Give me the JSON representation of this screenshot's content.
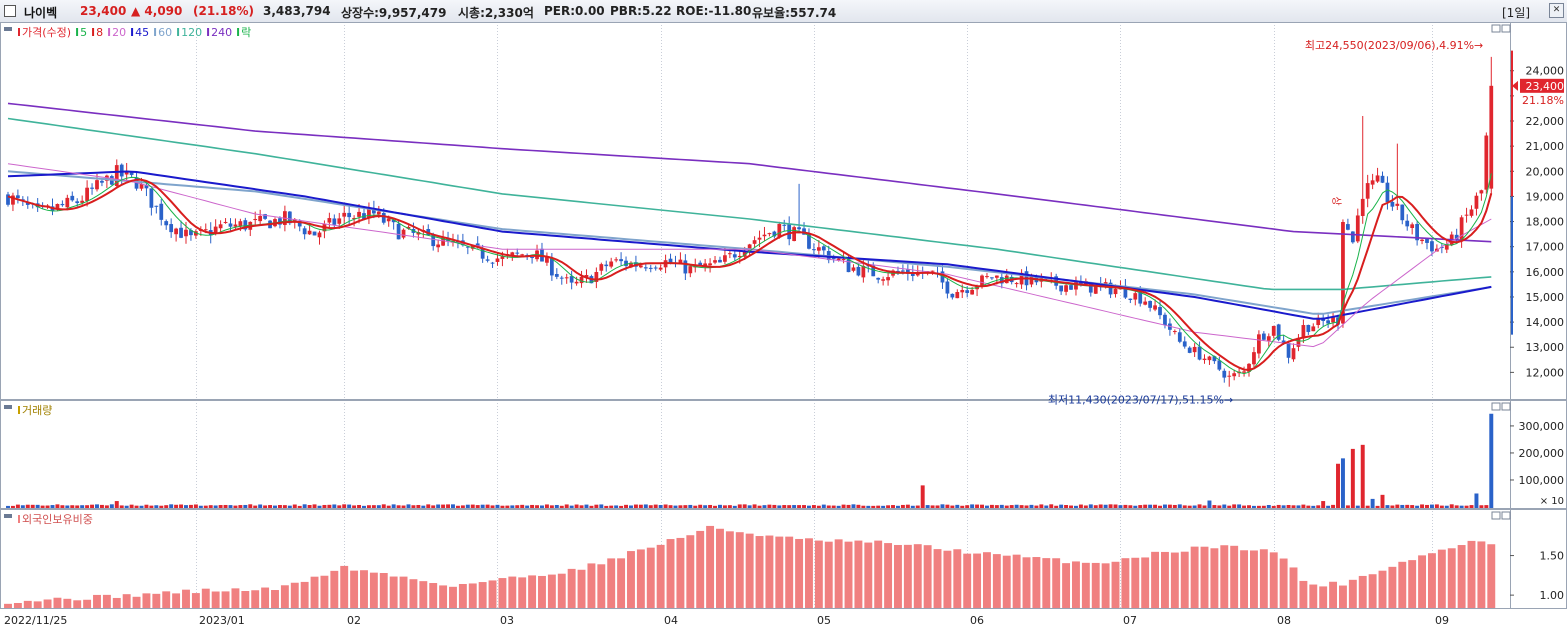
{
  "header": {
    "name": "나이벡",
    "price": "23,400",
    "change": "▲ 4,090",
    "change_pct": "(21.18%)",
    "volume": "3,483,794",
    "listed": "상장수:9,957,479",
    "mktcap": "시총:2,330억",
    "per": "PER:0.00",
    "pbr": "PBR:5.22",
    "roe": "ROE:-11.80",
    "reserve": "유보율:557.74",
    "period": "[1일]",
    "close_glyph": "✕"
  },
  "colors": {
    "up": "#e0262e",
    "down": "#2a62c9",
    "ma5": "#19b34a",
    "ma8": "#d81e1e",
    "ma20": "#cc66cc",
    "ma45": "#1a1acc",
    "ma60": "#7fa4cc",
    "ma120": "#3fb39a",
    "ma240": "#7a2fc0",
    "foreign": "#f08080"
  },
  "chart_data": [
    {
      "type": "candlestick",
      "title": "",
      "legend": [
        {
          "label": "가격(수정)",
          "color": "#e0262e"
        },
        {
          "label": "5",
          "color": "#19b34a"
        },
        {
          "label": "8",
          "color": "#d81e1e"
        },
        {
          "label": "20",
          "color": "#cc66cc"
        },
        {
          "label": "45",
          "color": "#1a1acc"
        },
        {
          "label": "60",
          "color": "#7fa4cc"
        },
        {
          "label": "120",
          "color": "#3fb39a"
        },
        {
          "label": "240",
          "color": "#7a2fc0"
        },
        {
          "label": "락",
          "color": "#19b34a"
        }
      ],
      "x_labels": [
        "2022/11/25",
        "2023/01",
        "02",
        "03",
        "04",
        "05",
        "06",
        "07",
        "08",
        "09"
      ],
      "y_ticks": [
        12000,
        13000,
        14000,
        15000,
        16000,
        17000,
        18000,
        19000,
        20000,
        21000,
        22000,
        23000,
        24000
      ],
      "y_tick_labels": [
        "12,000",
        "13,000",
        "14,000",
        "15,000",
        "16,000",
        "17,000",
        "18,000",
        "19,000",
        "20,000",
        "21,000",
        "22,000",
        "",
        "24,000"
      ],
      "ylim": [
        11100,
        25700
      ],
      "close_path": [
        [
          0,
          19000
        ],
        [
          6,
          18300
        ],
        [
          14,
          18800
        ],
        [
          22,
          19900
        ],
        [
          26,
          19600
        ],
        [
          32,
          18000
        ],
        [
          37,
          17300
        ],
        [
          43,
          17800
        ],
        [
          50,
          17900
        ],
        [
          56,
          18100
        ],
        [
          62,
          17500
        ],
        [
          68,
          18200
        ],
        [
          74,
          18300
        ],
        [
          79,
          17600
        ],
        [
          86,
          17300
        ],
        [
          94,
          16800
        ],
        [
          100,
          16500
        ],
        [
          106,
          16800
        ],
        [
          109,
          16300
        ],
        [
          114,
          15400
        ],
        [
          118,
          15800
        ],
        [
          122,
          16400
        ],
        [
          127,
          16300
        ],
        [
          133,
          16400
        ],
        [
          138,
          16100
        ],
        [
          144,
          16300
        ],
        [
          150,
          17200
        ],
        [
          156,
          17800
        ],
        [
          160,
          17400
        ],
        [
          164,
          16900
        ],
        [
          170,
          16200
        ],
        [
          176,
          15900
        ],
        [
          182,
          16000
        ],
        [
          187,
          15900
        ],
        [
          191,
          15200
        ],
        [
          194,
          15400
        ],
        [
          199,
          15800
        ],
        [
          205,
          15700
        ],
        [
          212,
          15500
        ],
        [
          219,
          15400
        ],
        [
          225,
          15300
        ],
        [
          230,
          14900
        ],
        [
          234,
          14000
        ],
        [
          237,
          13200
        ],
        [
          241,
          12700
        ],
        [
          244,
          12300
        ],
        [
          247,
          11800
        ],
        [
          250,
          12000
        ],
        [
          253,
          13400
        ],
        [
          256,
          13800
        ],
        [
          259,
          12700
        ],
        [
          262,
          13800
        ],
        [
          266,
          14000
        ],
        [
          269,
          14100
        ],
        [
          270,
          18200
        ],
        [
          272,
          17200
        ],
        [
          274,
          19200
        ],
        [
          277,
          19500
        ],
        [
          281,
          18400
        ],
        [
          285,
          17400
        ],
        [
          289,
          16900
        ],
        [
          292,
          17200
        ],
        [
          295,
          18200
        ],
        [
          298,
          19200
        ],
        [
          300,
          23400
        ]
      ],
      "candles_count": 301,
      "last_close": "23,400",
      "last_pct": "21.18%",
      "annotations": [
        {
          "text": "최고24,550(2023/09/06),4.91%→",
          "value": 24550
        },
        {
          "text": "최저11,430(2023/07/17),51.15%→",
          "value": 11430
        },
        {
          "text": "상",
          "note": "upper-limit marker"
        }
      ],
      "moving_averages": [
        {
          "name": "240",
          "points": [
            [
              0,
              22700
            ],
            [
              50,
              21600
            ],
            [
              100,
              20900
            ],
            [
              150,
              20300
            ],
            [
              200,
              19100
            ],
            [
              260,
              17600
            ],
            [
              300,
              17200
            ]
          ]
        },
        {
          "name": "120",
          "points": [
            [
              0,
              22100
            ],
            [
              50,
              20700
            ],
            [
              100,
              19100
            ],
            [
              150,
              18100
            ],
            [
              200,
              16900
            ],
            [
              255,
              15300
            ],
            [
              270,
              15300
            ],
            [
              300,
              15800
            ]
          ]
        },
        {
          "name": "60",
          "points": [
            [
              0,
              20000
            ],
            [
              50,
              19200
            ],
            [
              100,
              17700
            ],
            [
              150,
              16900
            ],
            [
              190,
              16200
            ],
            [
              240,
              15100
            ],
            [
              265,
              14300
            ],
            [
              300,
              15400
            ]
          ]
        },
        {
          "name": "45",
          "points": [
            [
              0,
              19800
            ],
            [
              25,
              20000
            ],
            [
              60,
              19000
            ],
            [
              100,
              17600
            ],
            [
              150,
              16800
            ],
            [
              190,
              16300
            ],
            [
              240,
              15000
            ],
            [
              265,
              14100
            ],
            [
              300,
              15400
            ]
          ]
        },
        {
          "name": "20",
          "points": [
            [
              0,
              20300
            ],
            [
              25,
              19600
            ],
            [
              50,
              18300
            ],
            [
              100,
              16900
            ],
            [
              150,
              16900
            ],
            [
              190,
              15900
            ],
            [
              240,
              13600
            ],
            [
              265,
              13000
            ],
            [
              275,
              14800
            ],
            [
              290,
              17000
            ],
            [
              300,
              18100
            ]
          ]
        }
      ]
    },
    {
      "type": "bar",
      "title": "거래량",
      "legend": [
        {
          "label": "거래량",
          "color": "#c8a000"
        }
      ],
      "y_ticks": [
        100000,
        200000,
        300000
      ],
      "y_tick_labels": [
        "100,000",
        "200,000",
        "300,000"
      ],
      "unit_label": "× 10",
      "ylim": [
        0,
        370000
      ],
      "spikes": [
        [
          22,
          22000
        ],
        [
          185,
          80000
        ],
        [
          243,
          24000
        ],
        [
          266,
          22000
        ],
        [
          269,
          160000
        ],
        [
          270,
          180000
        ],
        [
          272,
          215000
        ],
        [
          274,
          230000
        ],
        [
          276,
          30000
        ],
        [
          278,
          45000
        ],
        [
          297,
          50000
        ],
        [
          300,
          345000
        ]
      ],
      "base": 4000
    },
    {
      "type": "bar",
      "title": "외국인보유비중",
      "legend": [
        {
          "label": "외국인보유비중",
          "color": "#f08080"
        }
      ],
      "y_ticks": [
        1.0,
        1.5
      ],
      "y_tick_labels": [
        "1.00",
        "1.50"
      ],
      "ylim": [
        0.85,
        2.0
      ],
      "path": [
        [
          0,
          0.92
        ],
        [
          20,
          0.98
        ],
        [
          37,
          1.05
        ],
        [
          55,
          1.08
        ],
        [
          68,
          1.35
        ],
        [
          90,
          1.12
        ],
        [
          115,
          1.32
        ],
        [
          132,
          1.65
        ],
        [
          142,
          1.85
        ],
        [
          160,
          1.7
        ],
        [
          180,
          1.65
        ],
        [
          198,
          1.52
        ],
        [
          220,
          1.4
        ],
        [
          235,
          1.55
        ],
        [
          243,
          1.62
        ],
        [
          255,
          1.58
        ],
        [
          260,
          1.35
        ],
        [
          263,
          1.12
        ],
        [
          270,
          1.15
        ],
        [
          285,
          1.48
        ],
        [
          298,
          1.7
        ],
        [
          300,
          1.65
        ]
      ]
    }
  ]
}
